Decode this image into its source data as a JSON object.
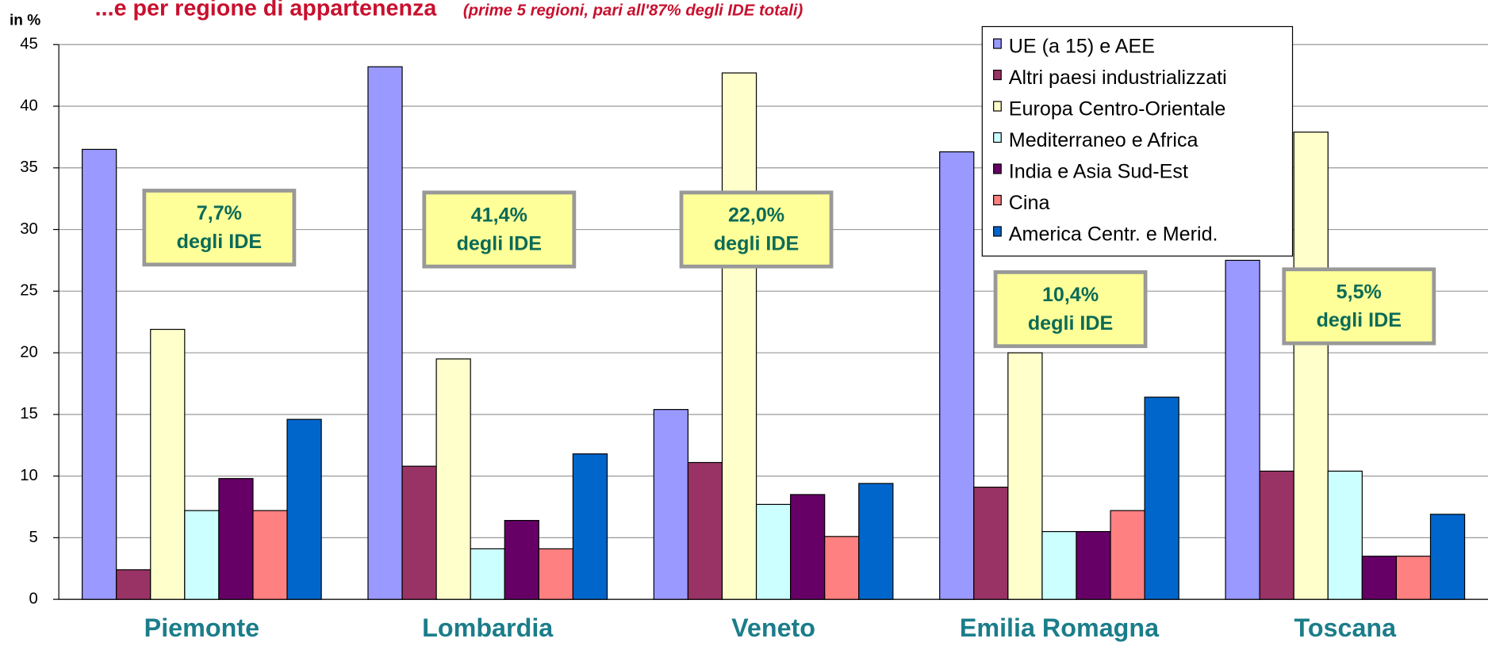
{
  "chart_data": {
    "type": "bar",
    "title": "...e per regione di appartenenza",
    "subtitle": "(prime 5 regioni, pari all'87% degli IDE totali)",
    "y_label": "in %",
    "categories": [
      "Piemonte",
      "Lombardia",
      "Veneto",
      "Emilia Romagna",
      "Toscana"
    ],
    "series": [
      {
        "name": "UE (a 15) e AEE",
        "color": "#9999ff",
        "values": [
          36.5,
          43.2,
          15.4,
          36.3,
          27.5
        ]
      },
      {
        "name": "Altri paesi industrializzati",
        "color": "#993366",
        "values": [
          2.4,
          10.8,
          11.1,
          9.1,
          10.4
        ]
      },
      {
        "name": "Europa Centro-Orientale",
        "color": "#ffffcc",
        "values": [
          21.9,
          19.5,
          42.7,
          20.0,
          37.9
        ]
      },
      {
        "name": "Mediterraneo e Africa",
        "color": "#ccffff",
        "values": [
          7.2,
          4.1,
          7.7,
          5.5,
          10.4
        ]
      },
      {
        "name": "India e Asia Sud-Est",
        "color": "#660066",
        "values": [
          9.8,
          6.4,
          8.5,
          5.5,
          3.5
        ]
      },
      {
        "name": "Cina",
        "color": "#ff8080",
        "values": [
          7.2,
          4.1,
          5.1,
          7.2,
          3.5
        ]
      },
      {
        "name": "America Centr. e Merid.",
        "color": "#0066cc",
        "values": [
          14.6,
          11.8,
          9.4,
          16.4,
          6.9
        ]
      }
    ],
    "ylim": [
      0,
      45
    ],
    "yticks": [
      0,
      5,
      10,
      15,
      20,
      25,
      30,
      35,
      40,
      45
    ],
    "grid": true,
    "legend": "top-right",
    "annotations": [
      {
        "line1": "7,7%",
        "line2": "degli IDE"
      },
      {
        "line1": "41,4%",
        "line2": "degli IDE"
      },
      {
        "line1": "22,0%",
        "line2": "degli IDE"
      },
      {
        "line1": "10,4%",
        "line2": "degli IDE"
      },
      {
        "line1": "5,5%",
        "line2": "degli IDE"
      }
    ]
  }
}
